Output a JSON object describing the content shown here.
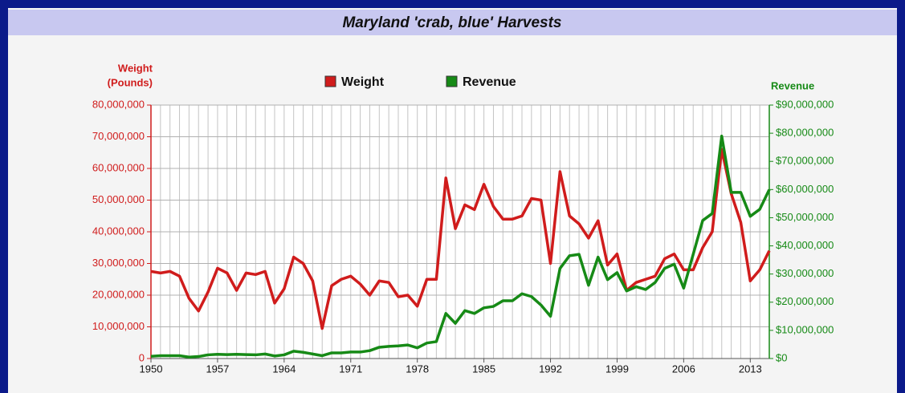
{
  "chart_data": {
    "type": "line",
    "title": "Maryland 'crab, blue' Harvests",
    "ylabel": [
      "Weight",
      "(Pounds)"
    ],
    "y2label": "Revenue",
    "x": [
      1950,
      1951,
      1952,
      1953,
      1954,
      1955,
      1956,
      1957,
      1958,
      1959,
      1960,
      1961,
      1962,
      1963,
      1964,
      1965,
      1966,
      1967,
      1968,
      1969,
      1970,
      1971,
      1972,
      1973,
      1974,
      1975,
      1976,
      1977,
      1978,
      1979,
      1980,
      1981,
      1982,
      1983,
      1984,
      1985,
      1986,
      1987,
      1988,
      1989,
      1990,
      1991,
      1992,
      1993,
      1994,
      1995,
      1996,
      1997,
      1998,
      1999,
      2000,
      2001,
      2002,
      2003,
      2004,
      2005,
      2006,
      2007,
      2008,
      2009,
      2010,
      2011,
      2012,
      2013,
      2014,
      2015
    ],
    "series": [
      {
        "name": "Weight",
        "color": "#d01c1c",
        "values": [
          27500000,
          27000000,
          27500000,
          26000000,
          19000000,
          15000000,
          21000000,
          28500000,
          27000000,
          21500000,
          27000000,
          26500000,
          27500000,
          17500000,
          22000000,
          32000000,
          30000000,
          24500000,
          9500000,
          23000000,
          25000000,
          26000000,
          23500000,
          20000000,
          24500000,
          24000000,
          19500000,
          20000000,
          16500000,
          25000000,
          25000000,
          57000000,
          41000000,
          48500000,
          47000000,
          55000000,
          48000000,
          44000000,
          44000000,
          45000000,
          50500000,
          50000000,
          30000000,
          59000000,
          45000000,
          42500000,
          38000000,
          43500000,
          29500000,
          33000000,
          21500000,
          24000000,
          25000000,
          26000000,
          31500000,
          33000000,
          28000000,
          28000000,
          35000000,
          40000000,
          66000000,
          52000000,
          43000000,
          24500000,
          28000000,
          34000000
        ]
      },
      {
        "name": "Revenue",
        "color": "#168a16",
        "axis": "y2",
        "values": [
          800000,
          1000000,
          1000000,
          1000000,
          500000,
          700000,
          1300000,
          1500000,
          1400000,
          1500000,
          1400000,
          1300000,
          1600000,
          900000,
          1300000,
          2600000,
          2200000,
          1600000,
          1000000,
          2000000,
          2000000,
          2300000,
          2300000,
          2800000,
          4000000,
          4300000,
          4500000,
          4800000,
          3800000,
          5500000,
          6000000,
          16000000,
          12500000,
          17000000,
          16000000,
          18000000,
          18500000,
          20500000,
          20500000,
          23000000,
          22000000,
          19000000,
          15000000,
          32000000,
          36500000,
          37000000,
          26000000,
          36000000,
          28000000,
          30500000,
          24000000,
          25500000,
          24500000,
          27000000,
          32000000,
          33500000,
          25000000,
          37000000,
          49000000,
          51500000,
          79000000,
          59000000,
          59000000,
          50500000,
          53000000,
          60000000
        ]
      }
    ],
    "xlim": [
      1950,
      2015
    ],
    "xticks": [
      1950,
      1957,
      1964,
      1971,
      1978,
      1985,
      1992,
      1999,
      2006,
      2013
    ],
    "ylim": [
      0,
      80000000
    ],
    "yticks": [
      0,
      {
        "value": 10000000,
        "label": "10,000,000"
      },
      {
        "value": 20000000,
        "label": "20,000,000"
      },
      {
        "value": 30000000,
        "label": "30,000,000"
      },
      {
        "value": 40000000,
        "label": "40,000,000"
      },
      {
        "value": 50000000,
        "label": "50,000,000"
      },
      {
        "value": 60000000,
        "label": "60,000,000"
      },
      {
        "value": 70000000,
        "label": "70,000,000"
      },
      {
        "value": 80000000,
        "label": "80,000,000"
      }
    ],
    "y2lim": [
      0,
      90000000
    ],
    "y2ticks": [
      {
        "value": 0,
        "label": "$0"
      },
      {
        "value": 10000000,
        "label": "$10,000,000"
      },
      {
        "value": 20000000,
        "label": "$20,000,000"
      },
      {
        "value": 30000000,
        "label": "$30,000,000"
      },
      {
        "value": 40000000,
        "label": "$40,000,000"
      },
      {
        "value": 50000000,
        "label": "$50,000,000"
      },
      {
        "value": 60000000,
        "label": "$60,000,000"
      },
      {
        "value": 70000000,
        "label": "$70,000,000"
      },
      {
        "value": 80000000,
        "label": "$80,000,000"
      },
      {
        "value": 90000000,
        "label": "$90,000,000"
      }
    ],
    "grid": true,
    "legend": "top"
  }
}
